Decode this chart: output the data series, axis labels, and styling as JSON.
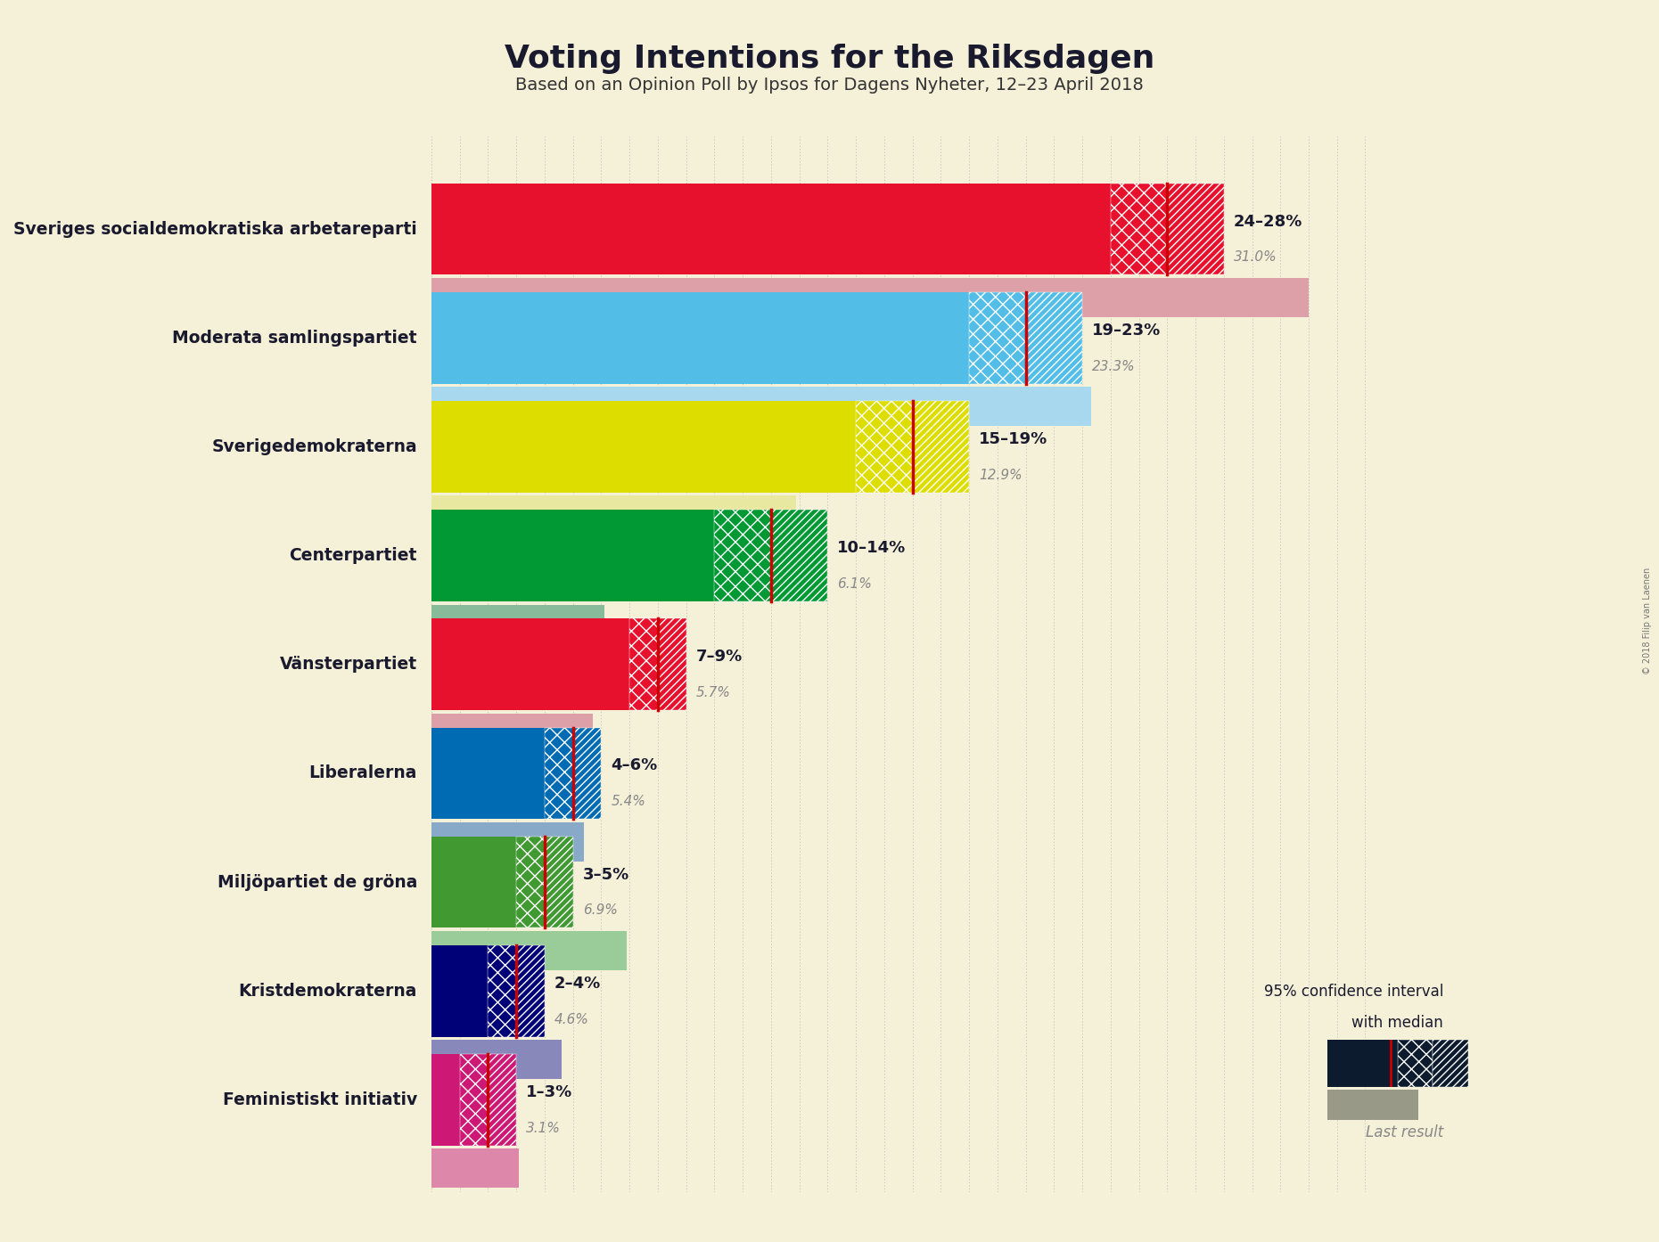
{
  "title": "Voting Intentions for the Riksdagen",
  "subtitle": "Based on an Opinion Poll by Ipsos for Dagens Nyheter, 12–23 April 2018",
  "copyright": "© 2018 Filip van Laenen",
  "background_color": "#f5f0d8",
  "parties": [
    {
      "name": "Sveriges socialdemokratiska arbetareparti",
      "ci_low": 24,
      "ci_high": 28,
      "median": 26,
      "last_result": 31.0,
      "color": "#E8112d",
      "last_color": "#dea0a8"
    },
    {
      "name": "Moderata samlingspartiet",
      "ci_low": 19,
      "ci_high": 23,
      "median": 21,
      "last_result": 23.3,
      "color": "#52BEE8",
      "last_color": "#a8d8ee"
    },
    {
      "name": "Sverigedemokraterna",
      "ci_low": 15,
      "ci_high": 19,
      "median": 17,
      "last_result": 12.9,
      "color": "#DDDD00",
      "last_color": "#e8e8a0"
    },
    {
      "name": "Centerpartiet",
      "ci_low": 10,
      "ci_high": 14,
      "median": 12,
      "last_result": 6.1,
      "color": "#009933",
      "last_color": "#88bb99"
    },
    {
      "name": "Vänsterpartiet",
      "ci_low": 7,
      "ci_high": 9,
      "median": 8,
      "last_result": 5.7,
      "color": "#E8112d",
      "last_color": "#dea0a8"
    },
    {
      "name": "Liberalerna",
      "ci_low": 4,
      "ci_high": 6,
      "median": 5,
      "last_result": 5.4,
      "color": "#006AB3",
      "last_color": "#88aac8"
    },
    {
      "name": "Miljöpartiet de gröna",
      "ci_low": 3,
      "ci_high": 5,
      "median": 4,
      "last_result": 6.9,
      "color": "#409931",
      "last_color": "#99cc99"
    },
    {
      "name": "Kristdemokraterna",
      "ci_low": 2,
      "ci_high": 4,
      "median": 3,
      "last_result": 4.6,
      "color": "#000077",
      "last_color": "#8888bb"
    },
    {
      "name": "Feministiskt initiativ",
      "ci_low": 1,
      "ci_high": 3,
      "median": 2,
      "last_result": 3.1,
      "color": "#CD1876",
      "last_color": "#dd88aa"
    }
  ],
  "label_color": "#1a1a2e",
  "ci_label_color": "#1a1a2e",
  "last_result_color": "#888888",
  "median_line_color": "#cc0000",
  "xlim": [
    0,
    34
  ],
  "grid_interval": 1
}
